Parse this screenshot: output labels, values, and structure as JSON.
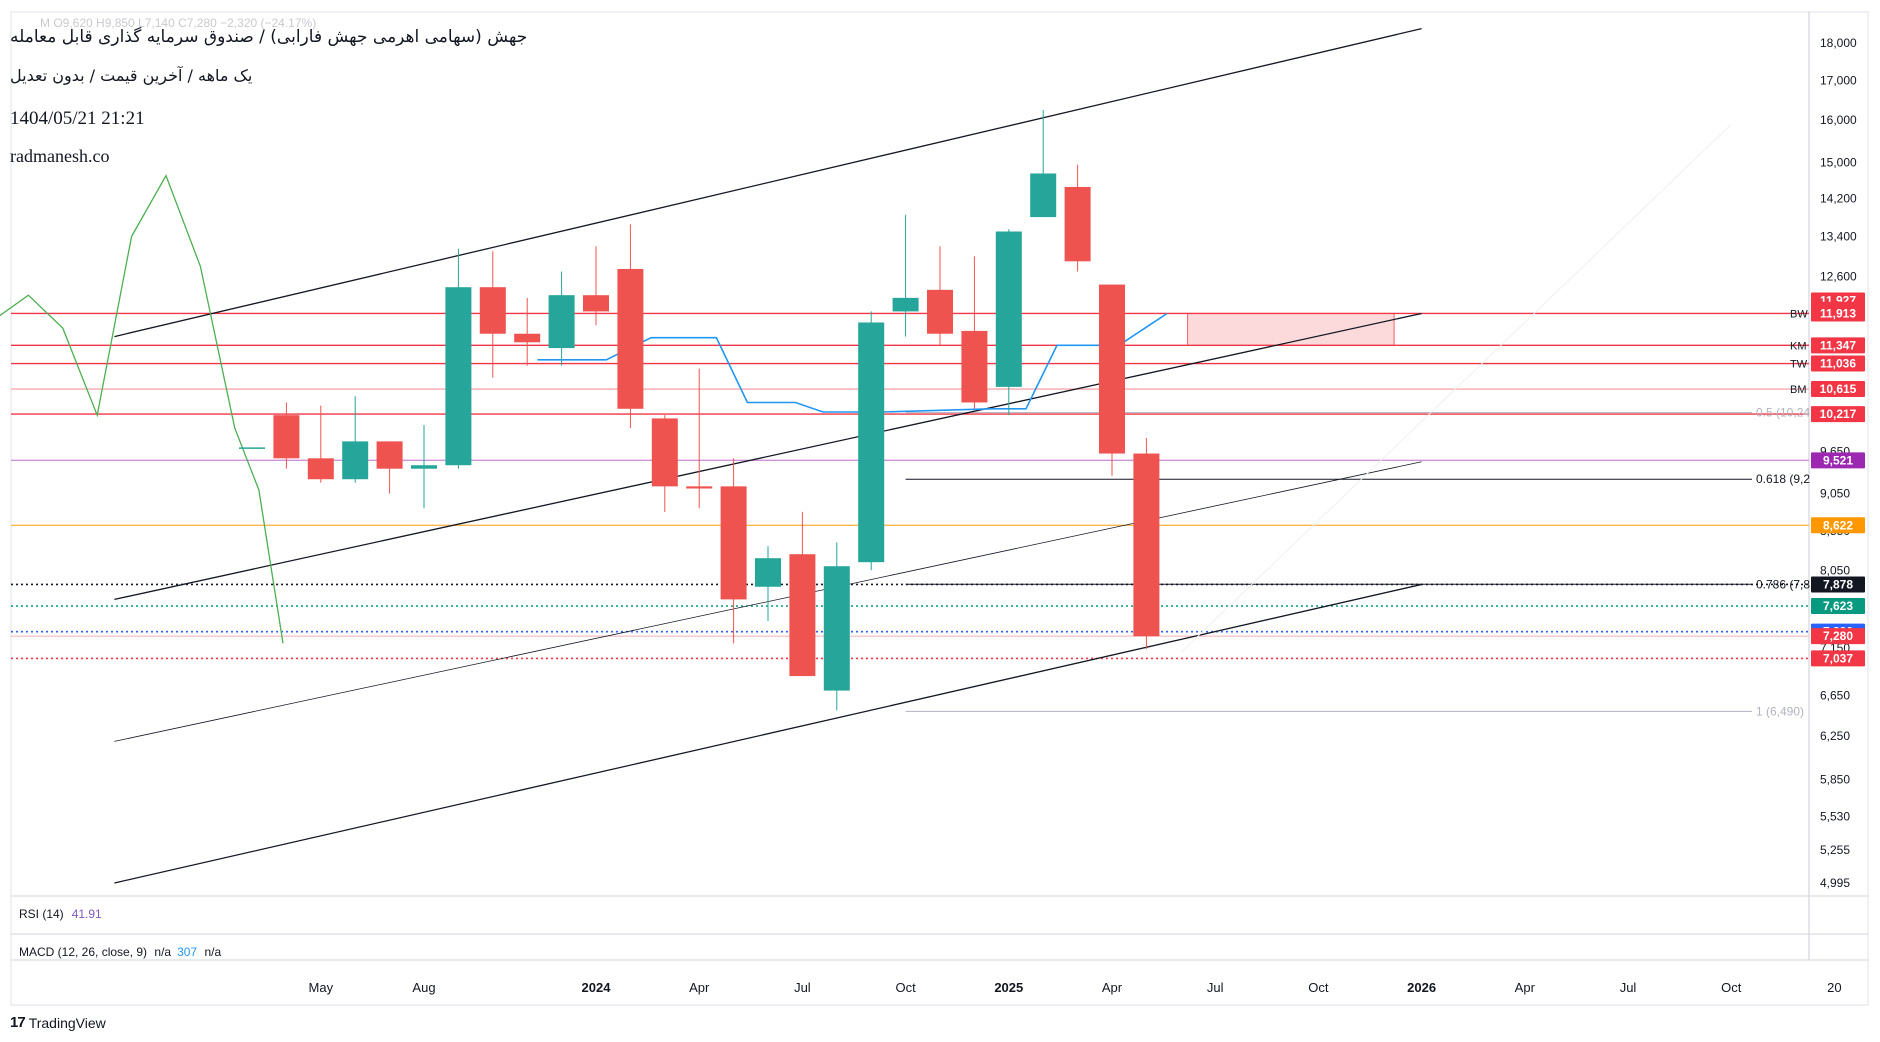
{
  "header": {
    "title": "جهش (سهامی اهرمی جهش فارابی) / صندوق سرمایه گذاری قابل معامله",
    "subtitle": "یک ماهه / آخرین قیمت / بدون تعدیل",
    "date": "1404/05/21 21:21",
    "site": "radmanesh.co",
    "faded_ohlc": "M  O9,620  H9,850  L7,140  C7,280  −2,320 (−24.17%)"
  },
  "branding": {
    "logo": "17",
    "name": "TradingView"
  },
  "indicators": {
    "rsi": {
      "label": "RSI (14)",
      "value": "41.91"
    },
    "macd": {
      "label": "MACD (12, 26, close, 9)",
      "v1": "n/a",
      "v2": "307",
      "v3": "n/a"
    }
  },
  "chart_data": {
    "type": "candlestick",
    "y_axis": {
      "position": "right",
      "scale": "log",
      "ticks": [
        "18,000",
        "17,000",
        "16,000",
        "15,000",
        "14,200",
        "13,400",
        "12,600",
        "11,900",
        "10,250",
        "9,650",
        "9,050",
        "8,550",
        "8,050",
        "7,600",
        "7,150",
        "6,650",
        "6,250",
        "5,850",
        "5,530",
        "5,255",
        "4,995"
      ]
    },
    "x_axis": {
      "ticks": [
        {
          "label": "May",
          "month": 2
        },
        {
          "label": "Aug",
          "month": 5
        },
        {
          "label": "2024",
          "month": 10,
          "bold": true
        },
        {
          "label": "Apr",
          "month": 13
        },
        {
          "label": "Jul",
          "month": 16
        },
        {
          "label": "Oct",
          "month": 19
        },
        {
          "label": "2025",
          "month": 22,
          "bold": true
        },
        {
          "label": "Apr",
          "month": 25
        },
        {
          "label": "Jul",
          "month": 28
        },
        {
          "label": "Oct",
          "month": 31
        },
        {
          "label": "2026",
          "month": 34,
          "bold": true
        },
        {
          "label": "Apr",
          "month": 37
        },
        {
          "label": "Jul",
          "month": 40
        },
        {
          "label": "Oct",
          "month": 43
        },
        {
          "label": "20",
          "month": 46
        }
      ]
    },
    "candles": [
      {
        "m": 0,
        "o": 9700,
        "h": 9700,
        "l": 9700,
        "c": 9700
      },
      {
        "m": 1,
        "o": 10200,
        "h": 10400,
        "l": 9400,
        "c": 9550
      },
      {
        "m": 2,
        "o": 9550,
        "h": 10350,
        "l": 9200,
        "c": 9250
      },
      {
        "m": 3,
        "o": 9250,
        "h": 10500,
        "l": 9200,
        "c": 9800
      },
      {
        "m": 4,
        "o": 9800,
        "h": 9800,
        "l": 9050,
        "c": 9400
      },
      {
        "m": 5,
        "o": 9400,
        "h": 10050,
        "l": 8850,
        "c": 9450
      },
      {
        "m": 6,
        "o": 9450,
        "h": 13150,
        "l": 9400,
        "c": 12400
      },
      {
        "m": 7,
        "o": 12400,
        "h": 13100,
        "l": 10800,
        "c": 11550
      },
      {
        "m": 8,
        "o": 11550,
        "h": 12200,
        "l": 11000,
        "c": 11400
      },
      {
        "m": 9,
        "o": 11300,
        "h": 12700,
        "l": 11000,
        "c": 12250
      },
      {
        "m": 10,
        "o": 12250,
        "h": 13200,
        "l": 11700,
        "c": 11950
      },
      {
        "m": 11,
        "o": 12750,
        "h": 13650,
        "l": 10000,
        "c": 10300
      },
      {
        "m": 12,
        "o": 10150,
        "h": 10200,
        "l": 8800,
        "c": 9150
      },
      {
        "m": 13,
        "o": 9150,
        "h": 10950,
        "l": 8850,
        "c": 9120
      },
      {
        "m": 14,
        "o": 9150,
        "h": 9550,
        "l": 7200,
        "c": 7700
      },
      {
        "m": 15,
        "o": 7850,
        "h": 8350,
        "l": 7450,
        "c": 8200
      },
      {
        "m": 16,
        "o": 8250,
        "h": 8800,
        "l": 6850,
        "c": 6850
      },
      {
        "m": 17,
        "o": 6700,
        "h": 8400,
        "l": 6500,
        "c": 8100
      },
      {
        "m": 18,
        "o": 8150,
        "h": 11950,
        "l": 8050,
        "c": 11750
      },
      {
        "m": 19,
        "o": 11950,
        "h": 13850,
        "l": 11500,
        "c": 12200
      },
      {
        "m": 20,
        "o": 12350,
        "h": 13200,
        "l": 11350,
        "c": 11550
      },
      {
        "m": 21,
        "o": 11600,
        "h": 13000,
        "l": 10300,
        "c": 10400
      },
      {
        "m": 22,
        "o": 10650,
        "h": 13550,
        "l": 10200,
        "c": 13500
      },
      {
        "m": 23,
        "o": 13800,
        "h": 16250,
        "l": 13800,
        "c": 14750
      },
      {
        "m": 24,
        "o": 14450,
        "h": 14950,
        "l": 12700,
        "c": 12900
      },
      {
        "m": 25,
        "o": 12450,
        "h": 12450,
        "l": 9300,
        "c": 9620
      },
      {
        "m": 26,
        "o": 9620,
        "h": 9850,
        "l": 7140,
        "c": 7280
      }
    ],
    "horizontal_levels": [
      {
        "name": "BW",
        "price": 11913,
        "badge": "11,913",
        "badge_color": "#f23645",
        "style": "solid",
        "line_color": "#f23645"
      },
      {
        "name": "KM",
        "price": 11347,
        "badge": "11,347",
        "badge_color": "#f23645",
        "style": "solid",
        "line_color": "#f23645"
      },
      {
        "name": "TW",
        "price": 11036,
        "badge": "11,036",
        "badge_color": "#f23645",
        "style": "solid",
        "line_color": "#f23645"
      },
      {
        "name": "BM",
        "price": 10615,
        "badge": "10,615",
        "badge_color": "#f23645",
        "style": "solid",
        "line_color": "#f7a9b0"
      },
      {
        "name": "",
        "price": 10217,
        "badge": "10,217",
        "badge_color": "#f23645",
        "style": "solid",
        "line_color": "#f23645"
      },
      {
        "name": "",
        "price": 9521,
        "badge": "9,521",
        "badge_color": "#9c27b0",
        "style": "solid",
        "line_color": "#ce93d8"
      },
      {
        "name": "",
        "price": 8622,
        "badge": "8,622",
        "badge_color": "#ff9800",
        "style": "solid",
        "line_color": "#ffb74d"
      },
      {
        "name": "",
        "price": 7878,
        "badge": "7,878",
        "badge_color": "#131722",
        "style": "dotted",
        "line_color": "#131722"
      },
      {
        "name": "",
        "price": 7623,
        "badge": "7,623",
        "badge_color": "#089981",
        "style": "dotted",
        "line_color": "#089981"
      },
      {
        "name": "",
        "price": 7330,
        "badge": "7,330",
        "badge_color": "#2962ff",
        "style": "dotted",
        "line_color": "#2962ff"
      },
      {
        "name": "",
        "price": 7280,
        "badge": "7,280",
        "badge_color": "#f23645",
        "style": "solid",
        "line_color": "#f7c4c9"
      },
      {
        "name": "",
        "price": 7037,
        "badge": "7,037",
        "badge_color": "#f23645",
        "style": "dotted",
        "line_color": "#f23645"
      }
    ],
    "extra_badges": [
      {
        "text": "11,927",
        "price": 12150,
        "color": "#f23645"
      },
      {
        "text": "11,913",
        "price": 11980,
        "color": "#f23645"
      }
    ],
    "fib_levels": [
      {
        "label": "0.5 (10,24",
        "price": 10240,
        "color": "#b0b3bd",
        "m_start": 19
      },
      {
        "label": "0.618 (9,2",
        "price": 9250,
        "color": "#131722",
        "m_start": 19
      },
      {
        "label": "0.786 (7,8",
        "price": 7880,
        "color": "#131722",
        "m_start": 19
      },
      {
        "label": "1 (6,490)",
        "price": 6490,
        "color": "#b0b3bd",
        "m_start": 19
      }
    ],
    "channel_lines": [
      {
        "from": {
          "m": -4,
          "p": 11500
        },
        "to": {
          "m": 34,
          "p": 18400
        },
        "color": "#131722",
        "width": 1.3
      },
      {
        "from": {
          "m": -4,
          "p": 7700
        },
        "to": {
          "m": 34,
          "p": 11913
        },
        "color": "#131722",
        "width": 1.3
      },
      {
        "from": {
          "m": -4,
          "p": 6200
        },
        "to": {
          "m": 34,
          "p": 9500
        },
        "color": "#131722",
        "width": 0.8
      },
      {
        "from": {
          "m": -4,
          "p": 4995
        },
        "to": {
          "m": 34,
          "p": 7878
        },
        "color": "#131722",
        "width": 1.3
      },
      {
        "from": {
          "m": 27,
          "p": 7100
        },
        "to": {
          "m": 43,
          "p": 15900
        },
        "color": "#f0f0f0",
        "width": 1
      }
    ],
    "zone": {
      "m_start": 27.2,
      "m_end": 33.2,
      "p_top": 11913,
      "p_bottom": 11347,
      "fill": "#fbd3d6",
      "stroke": "#f23645"
    },
    "blue_line": [
      {
        "m": 8.3,
        "p": 11100
      },
      {
        "m": 10.3,
        "p": 11100
      },
      {
        "m": 11.6,
        "p": 11480
      },
      {
        "m": 13.5,
        "p": 11480
      },
      {
        "m": 14.4,
        "p": 10400
      },
      {
        "m": 15.8,
        "p": 10400
      },
      {
        "m": 16.6,
        "p": 10250
      },
      {
        "m": 18.3,
        "p": 10250
      },
      {
        "m": 21.5,
        "p": 10300
      },
      {
        "m": 22.5,
        "p": 10300
      },
      {
        "m": 23.4,
        "p": 11347
      },
      {
        "m": 25.2,
        "p": 11347
      },
      {
        "m": 26.6,
        "p": 11913
      }
    ],
    "green_line": [
      {
        "m": -8.3,
        "p": 6950
      },
      {
        "m": -8,
        "p": 7750
      },
      {
        "m": -7.5,
        "p": 11800
      },
      {
        "m": -6.5,
        "p": 12250
      },
      {
        "m": -5.5,
        "p": 11650
      },
      {
        "m": -4.5,
        "p": 10200
      },
      {
        "m": -3.5,
        "p": 13400
      },
      {
        "m": -2.5,
        "p": 14700
      },
      {
        "m": -1.5,
        "p": 12800
      },
      {
        "m": -0.5,
        "p": 10000
      },
      {
        "m": 0.2,
        "p": 9100
      },
      {
        "m": 0.9,
        "p": 7200
      }
    ],
    "colors": {
      "up": "#26a69a",
      "down": "#ef5350",
      "grid": "#ffffff",
      "axis_text": "#131722"
    }
  }
}
